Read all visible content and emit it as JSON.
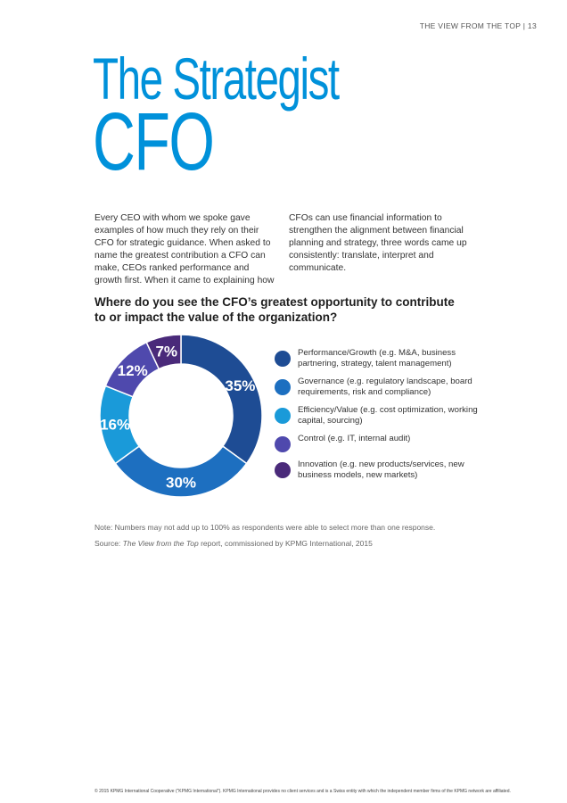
{
  "header": {
    "text": "THE VIEW FROM THE TOP | 13"
  },
  "title": {
    "line1": "The Strategist",
    "line2": "CFO"
  },
  "intro": "Every CEO with whom we spoke gave examples of how much they rely on their CFO for strategic guidance. When asked to name the greatest contribution a CFO can make, CEOs ranked performance and growth first. When it came to explaining how CFOs can use financial information to strengthen the alignment between financial planning and strategy, three words came up consistently: translate, interpret and communicate.",
  "question": "Where do you see the CFO’s greatest opportunity to contribute to or impact the value of the organization?",
  "chart_data": {
    "type": "pie",
    "subtype": "donut",
    "title": "Where do you see the CFO’s greatest opportunity to contribute to or impact the value of the organization?",
    "unit": "%",
    "legend_position": "right",
    "slices": [
      {
        "label": "Performance/Growth (e.g. M&A, business partnering, strategy, talent management)",
        "value": 35,
        "display": "35%",
        "color": "#1e4c94"
      },
      {
        "label": "Governance (e.g. regulatory landscape, board requirements, risk and compliance)",
        "value": 30,
        "display": "30%",
        "color": "#1d6fc0"
      },
      {
        "label": "Efficiency/Value (e.g. cost optimization, working capital, sourcing)",
        "value": 16,
        "display": "16%",
        "color": "#1a9ad9"
      },
      {
        "label": "Control (e.g. IT, internal audit)",
        "value": 12,
        "display": "12%",
        "color": "#4f49ad"
      },
      {
        "label": "Innovation (e.g. new products/services, new  business models, new markets)",
        "value": 7,
        "display": "7%",
        "color": "#4a2a7a"
      }
    ]
  },
  "legend": [
    {
      "text": "Performance/Growth (e.g. M&A, business partnering, strategy, talent management)",
      "color": "#1e4c94"
    },
    {
      "text": "Governance (e.g. regulatory landscape, board requirements, risk and compliance)",
      "color": "#1d6fc0"
    },
    {
      "text": "Efficiency/Value (e.g. cost optimization, working capital, sourcing)",
      "color": "#1a9ad9"
    },
    {
      "text": "Control (e.g. IT, internal audit)",
      "color": "#4f49ad"
    },
    {
      "text": "Innovation (e.g. new products/services, new  business models, new markets)",
      "color": "#4a2a7a"
    }
  ],
  "note": "Note: Numbers may not add up to 100% as respondents were able to select more than one response.",
  "source": {
    "prefix": "Source: ",
    "title": "The View from the Top",
    "suffix": " report, commissioned by KPMG International, 2015"
  },
  "footer": "© 2015 KPMG International Cooperative (“KPMG International”). KPMG International provides no client services and is a Swiss entity with which the independent member firms of the KPMG network are affiliated."
}
